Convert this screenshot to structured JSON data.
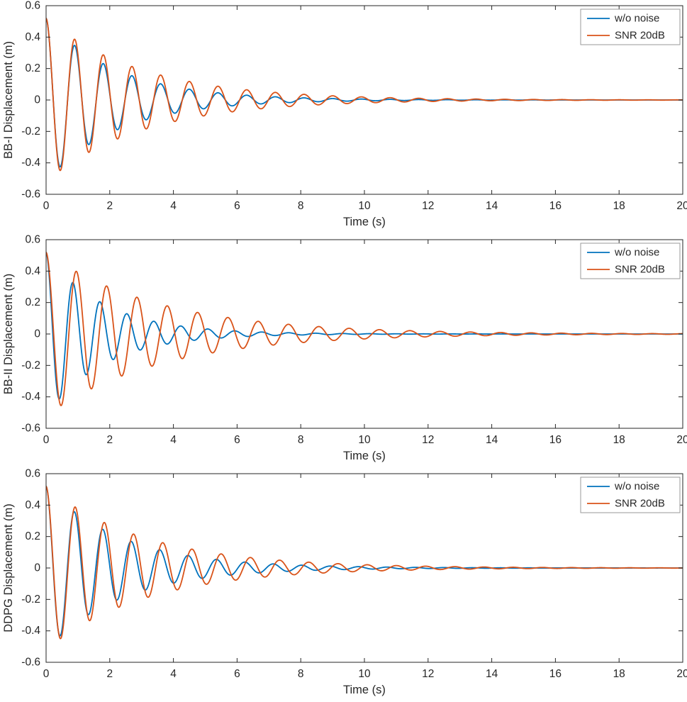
{
  "figure": {
    "background": "#ffffff",
    "axis_color": "#262626",
    "panel_names": [
      "BB-I",
      "BB-II",
      "DDPG"
    ]
  },
  "legend": {
    "entries": [
      "w/o noise",
      "SNR 20dB"
    ],
    "position": "top-right"
  },
  "colors": {
    "wo_noise": "#0072BD",
    "snr_20db": "#D95319"
  },
  "chart_data": [
    {
      "type": "line",
      "title": "",
      "xlabel": "Time (s)",
      "ylabel": "BB-I Displacement (m)",
      "xlim": [
        0,
        20
      ],
      "ylim": [
        -0.6,
        0.6
      ],
      "xticks": [
        0,
        2,
        4,
        6,
        8,
        10,
        12,
        14,
        16,
        18,
        20
      ],
      "xtick_labels": [
        "0",
        "2",
        "4",
        "6",
        "8",
        "10",
        "12",
        "14",
        "16",
        "18",
        "20"
      ],
      "yticks": [
        -0.6,
        -0.4,
        -0.2,
        0,
        0.2,
        0.4,
        0.6
      ],
      "ytick_labels": [
        "-0.6",
        "-0.4",
        "-0.2",
        "0",
        "0.2",
        "0.4",
        "0.6"
      ],
      "grid": false,
      "legend_position": "top-right",
      "series": [
        {
          "name": "w/o noise",
          "color": "#0072BD",
          "model": "damped_cosine",
          "amplitude": 0.52,
          "decay_rate": 0.45,
          "frequency_hz": 1.11,
          "phase_rad": 0,
          "t_start": 0,
          "t_end": 20,
          "dt": 0.01,
          "key_points": {
            "initial_value": 0.52,
            "first_trough": -0.41,
            "first_trough_t": 0.45,
            "second_peak": 0.33,
            "second_peak_t": 0.9
          }
        },
        {
          "name": "SNR 20dB",
          "color": "#D95319",
          "model": "damped_cosine",
          "amplitude": 0.52,
          "decay_rate": 0.33,
          "frequency_hz": 1.11,
          "phase_rad": 0,
          "t_start": 0,
          "t_end": 20,
          "dt": 0.01,
          "key_points": {
            "initial_value": 0.52,
            "first_trough": -0.42,
            "first_trough_t": 0.45,
            "second_peak": 0.33,
            "second_peak_t": 0.9
          }
        }
      ]
    },
    {
      "type": "line",
      "title": "",
      "xlabel": "Time (s)",
      "ylabel": "BB-II Displacement (m)",
      "xlim": [
        0,
        20
      ],
      "ylim": [
        -0.6,
        0.6
      ],
      "xticks": [
        0,
        2,
        4,
        6,
        8,
        10,
        12,
        14,
        16,
        18,
        20
      ],
      "xtick_labels": [
        "0",
        "2",
        "4",
        "6",
        "8",
        "10",
        "12",
        "14",
        "16",
        "18",
        "20"
      ],
      "yticks": [
        -0.6,
        -0.4,
        -0.2,
        0,
        0.2,
        0.4,
        0.6
      ],
      "ytick_labels": [
        "-0.6",
        "-0.4",
        "-0.2",
        "0",
        "0.2",
        "0.4",
        "0.6"
      ],
      "grid": false,
      "legend_position": "top-right",
      "series": [
        {
          "name": "w/o noise",
          "color": "#0072BD",
          "model": "damped_cosine",
          "amplitude": 0.52,
          "decay_rate": 0.55,
          "frequency_hz": 1.18,
          "phase_rad": 0,
          "t_start": 0,
          "t_end": 20,
          "dt": 0.01,
          "key_points": {
            "initial_value": 0.52,
            "first_trough": -0.41,
            "first_trough_t": 0.42,
            "second_peak": 0.37,
            "second_peak_t": 0.85
          }
        },
        {
          "name": "SNR 20dB",
          "color": "#D95319",
          "model": "damped_cosine",
          "amplitude": 0.52,
          "decay_rate": 0.28,
          "frequency_hz": 1.05,
          "phase_rad": 0,
          "t_start": 0,
          "t_end": 20,
          "dt": 0.01,
          "key_points": {
            "initial_value": 0.52,
            "first_trough": -0.45,
            "first_trough_t": 0.48,
            "second_peak": 0.4,
            "second_peak_t": 0.95
          }
        }
      ]
    },
    {
      "type": "line",
      "title": "",
      "xlabel": "Time (s)",
      "ylabel": "DDPG Displacement (m)",
      "xlim": [
        0,
        20
      ],
      "ylim": [
        -0.6,
        0.6
      ],
      "xticks": [
        0,
        2,
        4,
        6,
        8,
        10,
        12,
        14,
        16,
        18,
        20
      ],
      "xtick_labels": [
        "0",
        "2",
        "4",
        "6",
        "8",
        "10",
        "12",
        "14",
        "16",
        "18",
        "20"
      ],
      "yticks": [
        -0.6,
        -0.4,
        -0.2,
        0,
        0.2,
        0.4,
        0.6
      ],
      "ytick_labels": [
        "-0.6",
        "-0.4",
        "-0.2",
        "0",
        "0.2",
        "0.4",
        "0.6"
      ],
      "grid": false,
      "legend_position": "top-right",
      "series": [
        {
          "name": "w/o noise",
          "color": "#0072BD",
          "model": "damped_cosine",
          "amplitude": 0.52,
          "decay_rate": 0.42,
          "frequency_hz": 1.12,
          "phase_rad": 0,
          "t_start": 0,
          "t_end": 20,
          "dt": 0.01,
          "key_points": {
            "initial_value": 0.52,
            "first_trough": -0.41,
            "first_trough_t": 0.45,
            "second_peak": 0.34,
            "second_peak_t": 0.9
          }
        },
        {
          "name": "SNR 20dB",
          "color": "#D95319",
          "model": "damped_cosine",
          "amplitude": 0.52,
          "decay_rate": 0.32,
          "frequency_hz": 1.09,
          "phase_rad": 0,
          "t_start": 0,
          "t_end": 20,
          "dt": 0.01,
          "key_points": {
            "initial_value": 0.52,
            "first_trough": -0.42,
            "first_trough_t": 0.46,
            "second_peak": 0.35,
            "second_peak_t": 0.92
          }
        }
      ]
    }
  ]
}
